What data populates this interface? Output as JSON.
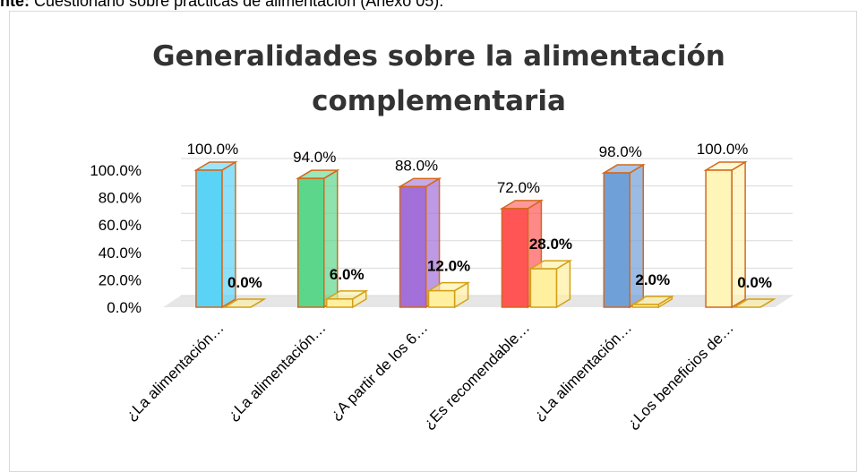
{
  "caption": {
    "label": "nte:",
    "text": "Cuestionario sobre prácticas de alimentación (Anexo 05)."
  },
  "chart_data": {
    "type": "bar3d",
    "title": "Generalidades sobre la alimentación complementaria",
    "categories": [
      "¿La alimentación…",
      "¿La alimentación…",
      "¿A partir de los 6…",
      "¿Es recomendable…",
      "¿La alimentación…",
      "¿Los beneficios de…"
    ],
    "series": [
      {
        "colors": [
          "#5bd3f7",
          "#5cd68b",
          "#a36fd9",
          "#ff5555",
          "#6fa0d8",
          "#fff5b8"
        ],
        "edge": "#d2691e",
        "values": [
          100,
          94,
          88,
          72,
          98,
          100
        ],
        "value_labels": [
          "100.0%",
          "94.0%",
          "88.0%",
          "72.0%",
          "98.0%",
          "100.0%"
        ],
        "label_bold": false
      },
      {
        "color": "#fff0a0",
        "edge": "#d4a017",
        "values": [
          0,
          6,
          12,
          28,
          2,
          0
        ],
        "value_labels": [
          "0.0%",
          "6.0%",
          "12.0%",
          "28.0%",
          "2.0%",
          "0.0%"
        ],
        "label_bold": true
      }
    ],
    "ylim": [
      0,
      100
    ],
    "yticks": [
      {
        "value": 0,
        "label": "0.0%"
      },
      {
        "value": 20,
        "label": "20.0%"
      },
      {
        "value": 40,
        "label": "40.0%"
      },
      {
        "value": 60,
        "label": "60.0%"
      },
      {
        "value": 80,
        "label": "80.0%"
      },
      {
        "value": 100,
        "label": "100.0%"
      }
    ],
    "grid": true
  }
}
